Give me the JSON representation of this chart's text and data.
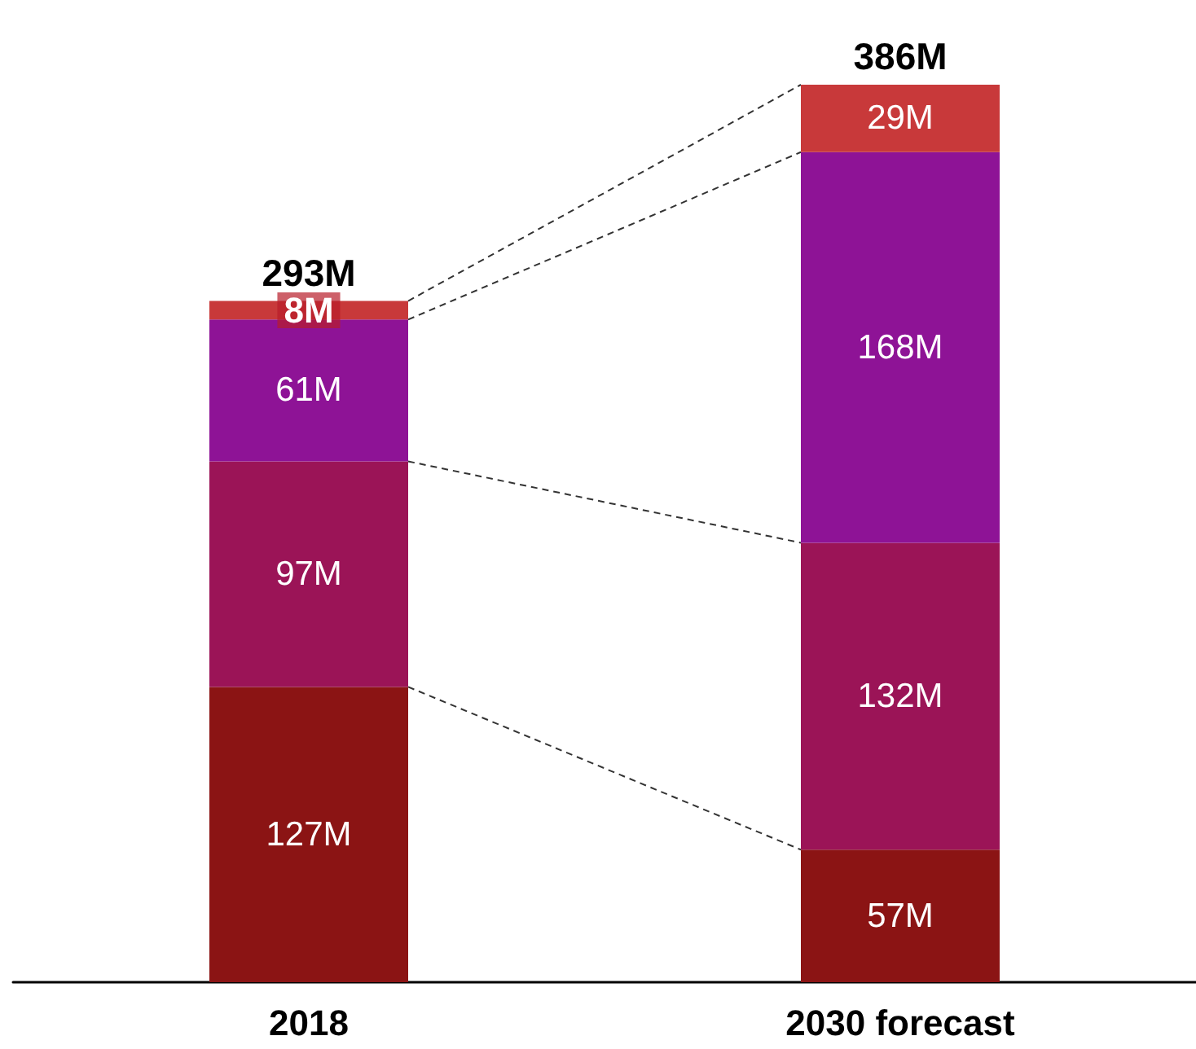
{
  "chart_data": {
    "type": "bar",
    "stacked": true,
    "categories": [
      "2018",
      "2030 forecast"
    ],
    "series": [
      {
        "color": "#8b1414",
        "values": [
          127,
          57
        ],
        "value_labels": [
          "127M",
          "57M"
        ]
      },
      {
        "color": "#9b1457",
        "values": [
          97,
          132
        ],
        "value_labels": [
          "97M",
          "132M"
        ]
      },
      {
        "color": "#8e1396",
        "values": [
          61,
          168
        ],
        "value_labels": [
          "61M",
          "168M"
        ]
      },
      {
        "color": "#c8393a",
        "values": [
          8,
          29
        ],
        "value_labels": [
          "8M",
          "29M"
        ]
      }
    ],
    "totals": [
      "293M",
      "386M"
    ]
  }
}
